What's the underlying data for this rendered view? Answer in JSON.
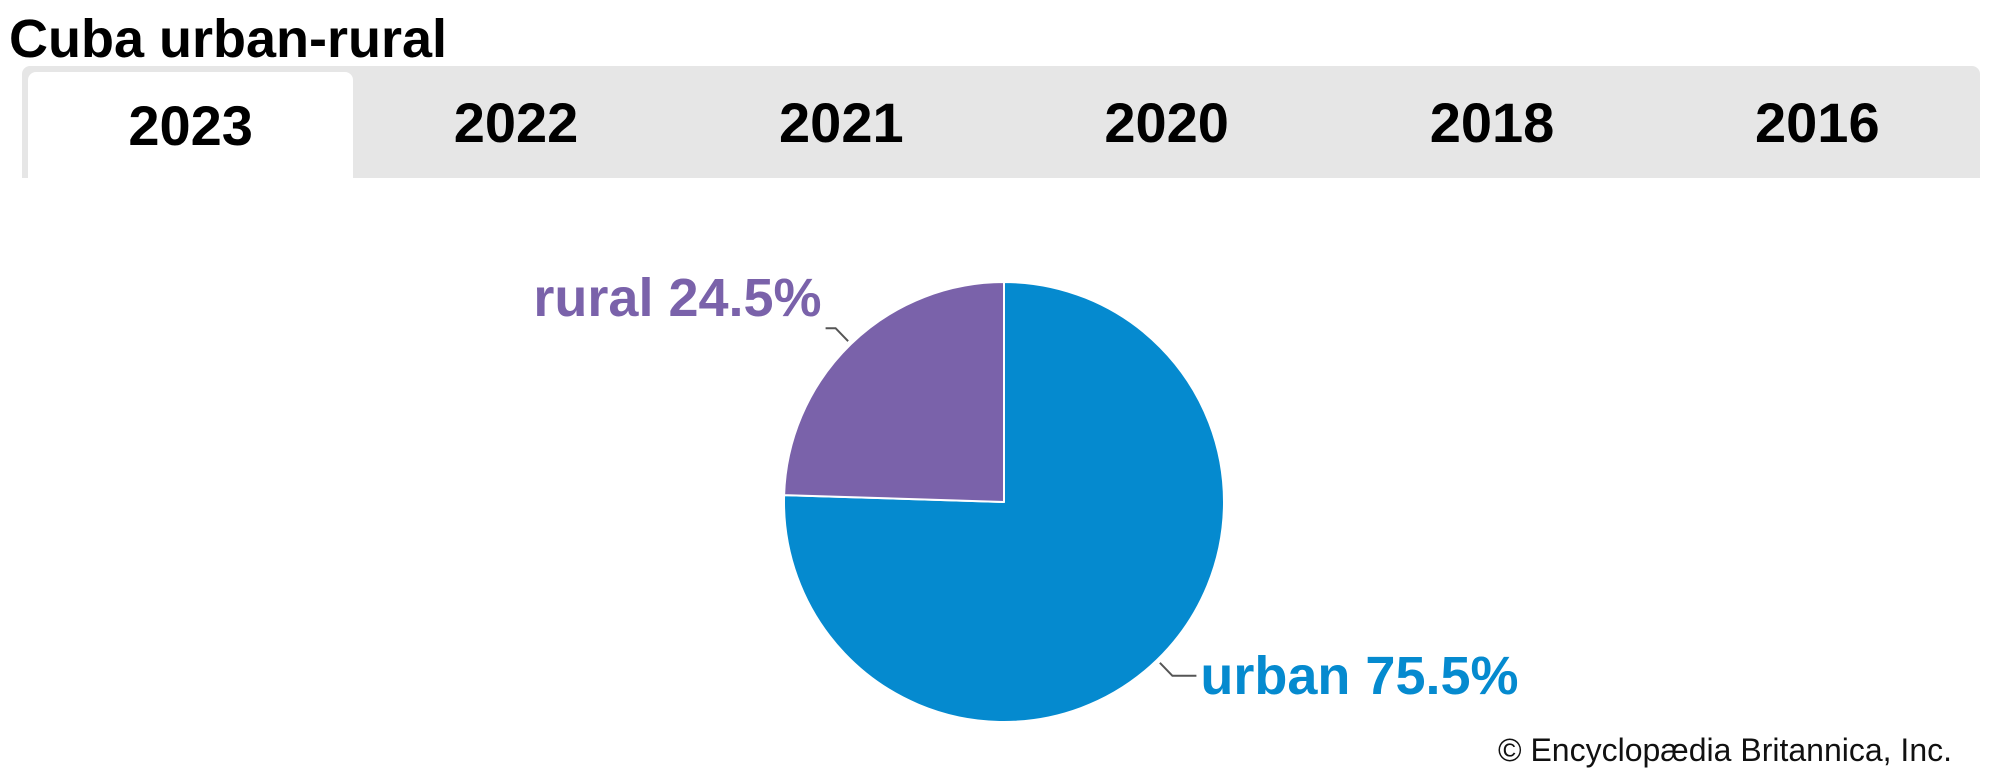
{
  "header": {
    "title": "Cuba urban-rural"
  },
  "tabs": [
    {
      "label": "2023",
      "active": true
    },
    {
      "label": "2022",
      "active": false
    },
    {
      "label": "2021",
      "active": false
    },
    {
      "label": "2020",
      "active": false
    },
    {
      "label": "2018",
      "active": false
    },
    {
      "label": "2016",
      "active": false
    }
  ],
  "chart_data": {
    "type": "pie",
    "title": "",
    "slices": [
      {
        "label": "urban 75.5%",
        "category": "urban",
        "value": 75.5,
        "color": "#058ACF"
      },
      {
        "label": "rural 24.5%",
        "category": "rural",
        "value": 24.5,
        "color": "#7A62AA"
      }
    ],
    "start": "12 o'clock",
    "direction": "clockwise",
    "legend": "none"
  },
  "footer": {
    "credit": "© Encyclopædia Britannica, Inc."
  }
}
